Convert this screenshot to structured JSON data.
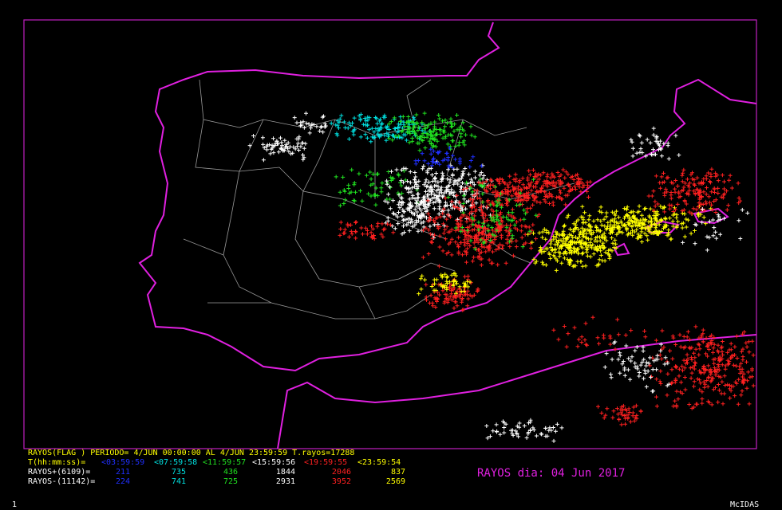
{
  "header": {
    "line": "RAYOS(FLAG ) PERIODO= 4/JUN 00:00:00 AL  4/JUN 23:59:59  T.rayos=17288"
  },
  "legend": {
    "time_label": "T(hh:mm:ss)=",
    "intervals": [
      "<03:59:59",
      "<07:59:58",
      "<11:59:57",
      "<15:59:56",
      "<19:59:55",
      "<23:59:54"
    ]
  },
  "positive": {
    "label": "RAYOS+(6109)=",
    "counts": [
      211,
      735,
      436,
      1844,
      2046,
      837
    ]
  },
  "negative": {
    "label": "RAYOS-(11142)=",
    "counts": [
      224,
      741,
      725,
      2931,
      3952,
      2569
    ]
  },
  "title": "RAYOS dia: 04 Jun 2017",
  "footer": {
    "left": "1",
    "right": "McIDAS"
  }
}
